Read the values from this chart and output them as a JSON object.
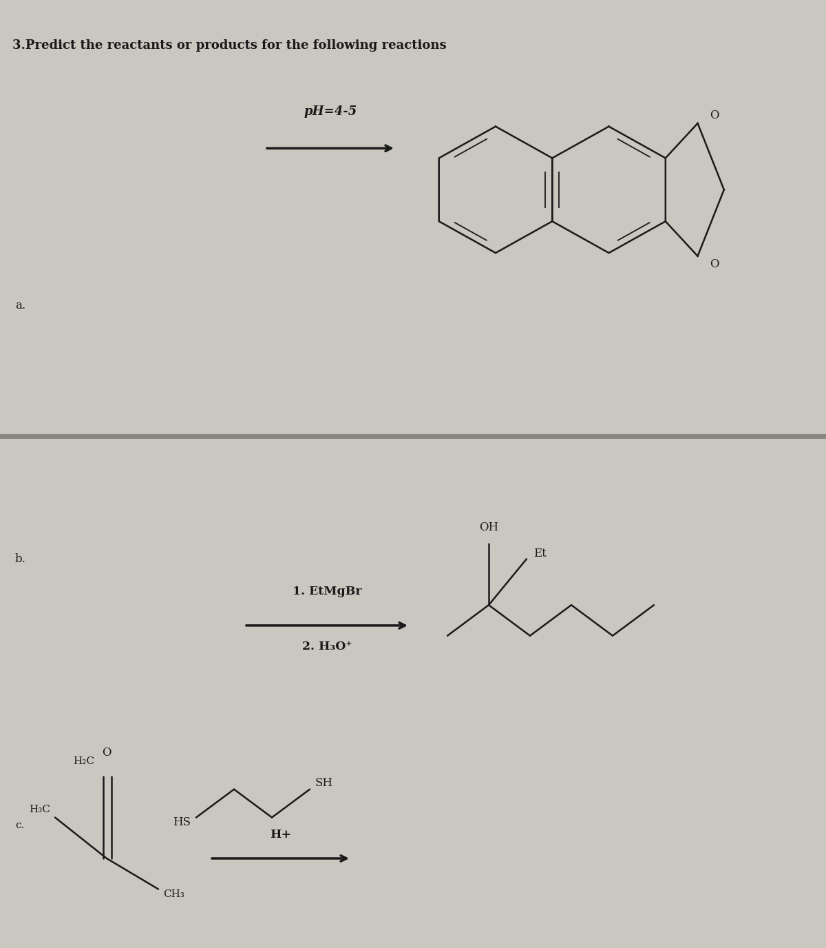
{
  "title": "3.Predict the reactants or products for the following reactions",
  "bg_color": "#cac6c0",
  "sep_color": "#888880",
  "line_color": "#1a1a1a",
  "text_color": "#1a1a1a",
  "label_a": "a.",
  "label_b": "b.",
  "label_c": "c.",
  "ph_label": "pH=4-5",
  "b_label1": "1. EtMgBr",
  "b_label2": "2. H₃O⁺",
  "c_label": "H+",
  "oh_label": "OH",
  "et_label": "Et",
  "o_top_label": "O",
  "o_bot_label": "O",
  "h2c_label": "H₂C",
  "h3c_label": "H₃C",
  "ch3_label": "CH₃",
  "hs_label": "HS",
  "sh_label": "SH",
  "o_ketone": "O",
  "fig_width": 12.0,
  "fig_height": 13.76
}
